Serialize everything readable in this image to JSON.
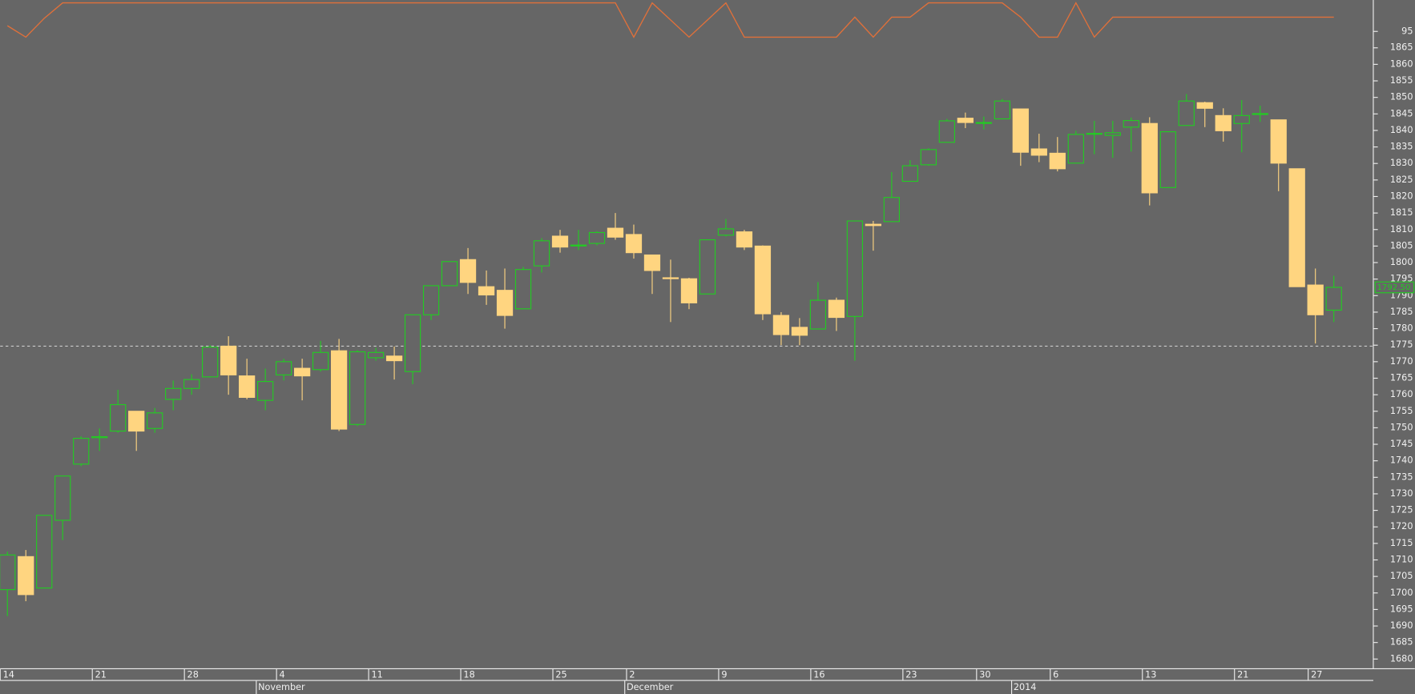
{
  "chart_data": [
    {
      "type": "candlestick",
      "categories": [
        "14",
        null,
        null,
        null,
        null,
        "21",
        null,
        null,
        null,
        null,
        "28",
        null,
        null,
        null,
        null,
        "4",
        null,
        null,
        null,
        null,
        "11",
        null,
        null,
        null,
        null,
        "18",
        null,
        null,
        null,
        null,
        "25",
        null,
        null,
        null,
        "2",
        null,
        null,
        null,
        null,
        "9",
        null,
        null,
        null,
        null,
        "16",
        null,
        null,
        null,
        null,
        "23",
        null,
        null,
        null,
        "30",
        null,
        null,
        null,
        "6",
        null,
        null,
        null,
        null,
        "13",
        null,
        null,
        null,
        null,
        "21",
        null,
        null,
        null,
        "27",
        null
      ],
      "months": [
        null,
        null,
        null,
        null,
        null,
        null,
        null,
        null,
        null,
        null,
        null,
        null,
        null,
        null,
        "November",
        null,
        null,
        null,
        null,
        null,
        null,
        null,
        null,
        null,
        null,
        null,
        null,
        null,
        null,
        null,
        null,
        null,
        null,
        null,
        "December",
        null,
        null,
        null,
        null,
        null,
        null,
        null,
        null,
        null,
        null,
        null,
        null,
        null,
        null,
        null,
        null,
        null,
        null,
        null,
        null,
        "2014",
        null,
        null,
        null,
        null,
        null,
        null,
        null,
        null,
        null,
        null,
        null,
        null,
        null,
        null,
        null,
        null,
        null
      ],
      "open": [
        1701,
        1711,
        1701.5,
        1722,
        1739,
        1747,
        1749,
        1755,
        1749.8,
        1758.6,
        1761.9,
        1765.4,
        1774.7,
        1765.7,
        1758.3,
        1766,
        1768,
        1767.6,
        1773.3,
        1751,
        1771.2,
        1771.7,
        1767,
        1784.2,
        1793,
        1800.9,
        1792.7,
        1791.6,
        1786,
        1799,
        1808,
        1805.2,
        1805.8,
        1810.4,
        1808.5,
        1802.3,
        1795.4,
        1795.1,
        1790.5,
        1808.3,
        1809.3,
        1805,
        1784,
        1780.4,
        1779.9,
        1788.6,
        1783.7,
        1811.6,
        1812.4,
        1824.6,
        1829.6,
        1836.4,
        1843.7,
        1842.3,
        1843.5,
        1846.5,
        1834.4,
        1833.1,
        1830.1,
        1839,
        1838.5,
        1841,
        1842.1,
        1822.7,
        1841.5,
        1848.4,
        1844.5,
        1842.1,
        1845,
        1843.2,
        1828.4,
        1793.2,
        1785.6
      ],
      "close": [
        1711.5,
        1699.5,
        1723.5,
        1735.4,
        1746.8,
        1747.3,
        1757,
        1749,
        1754.5,
        1761.9,
        1764.6,
        1774.4,
        1766,
        1759.2,
        1764,
        1770,
        1765.7,
        1772.8,
        1749.6,
        1773,
        1772.8,
        1770.3,
        1784.2,
        1793,
        1800.3,
        1794,
        1790.2,
        1784,
        1797.9,
        1806.6,
        1804.7,
        1805.3,
        1809.1,
        1807.7,
        1803,
        1797.6,
        1795.2,
        1787.8,
        1806.9,
        1810.2,
        1804.7,
        1784.5,
        1778.2,
        1778,
        1788.6,
        1783.4,
        1812.6,
        1811.2,
        1819.7,
        1829.3,
        1834.2,
        1842.9,
        1842.4,
        1842.4,
        1848.9,
        1833.4,
        1832.5,
        1828.4,
        1838.8,
        1839.1,
        1839.3,
        1843,
        1821.1,
        1839.6,
        1848.9,
        1846.7,
        1839.9,
        1844.5,
        1845.1,
        1830.1,
        1792.7,
        1784.2,
        1792.5
      ],
      "high": [
        1712.5,
        1713,
        1723.5,
        1735.4,
        1747.4,
        1749.8,
        1761.5,
        1755,
        1756,
        1764.3,
        1766.2,
        1775,
        1777.7,
        1770.9,
        1767.9,
        1770.9,
        1770.9,
        1776.3,
        1776.9,
        1773.5,
        1774.2,
        1774.6,
        1784.2,
        1793,
        1800.3,
        1804.4,
        1797.6,
        1798.2,
        1798.7,
        1807.4,
        1809.9,
        1809.9,
        1809.5,
        1815,
        1811.5,
        1802.3,
        1800.9,
        1795.4,
        1806.9,
        1813.2,
        1809.9,
        1805.2,
        1785,
        1783.2,
        1794.1,
        1789.4,
        1812.6,
        1812.6,
        1827.4,
        1831,
        1834.6,
        1843.5,
        1845.4,
        1844.2,
        1849.5,
        1846.5,
        1839,
        1838,
        1839.9,
        1842.9,
        1842.9,
        1843.9,
        1844,
        1839.6,
        1851,
        1848.7,
        1846.7,
        1849.2,
        1847.5,
        1843.2,
        1828.4,
        1798.2,
        1796
      ],
      "low": [
        1693,
        1697.5,
        1701.5,
        1716,
        1738.4,
        1743,
        1748.5,
        1743,
        1748.5,
        1755.3,
        1760,
        1765.2,
        1760,
        1758.6,
        1755.3,
        1764.3,
        1758.3,
        1767,
        1749,
        1750.5,
        1770.3,
        1764.6,
        1763.2,
        1782.6,
        1793,
        1790.5,
        1787.2,
        1780,
        1786,
        1797,
        1803,
        1803.8,
        1805.2,
        1806.9,
        1801.2,
        1790.5,
        1782,
        1785.9,
        1790.5,
        1807.9,
        1803.8,
        1782.6,
        1775,
        1775,
        1779.9,
        1779.3,
        1770.3,
        1803.6,
        1812.4,
        1824.6,
        1829.3,
        1836.4,
        1840.7,
        1840.3,
        1843.5,
        1829.3,
        1830.4,
        1827.6,
        1830.1,
        1832.8,
        1831.7,
        1833.6,
        1817.3,
        1822.7,
        1841.5,
        1841,
        1836.6,
        1833.4,
        1842.6,
        1821.6,
        1792.7,
        1775.5,
        1782
      ],
      "up_color": "#22cc22",
      "down_color": "#ffd580",
      "reference_line": 1774.7,
      "last_price": {
        "value": 1792.5,
        "label": "1792.50"
      },
      "ylim": [
        1677.6,
        1867.2
      ],
      "yticks": [
        1680,
        1685,
        1690,
        1695,
        1700,
        1705,
        1710,
        1715,
        1720,
        1725,
        1730,
        1735,
        1740,
        1745,
        1750,
        1755,
        1760,
        1765,
        1770,
        1775,
        1780,
        1785,
        1790,
        1795,
        1800,
        1805,
        1810,
        1815,
        1820,
        1825,
        1830,
        1835,
        1840,
        1845,
        1850,
        1855,
        1860,
        1865
      ]
    },
    {
      "type": "line",
      "color": "#e0703a",
      "values": [
        96,
        94,
        97.3,
        100,
        100,
        100,
        100,
        100,
        100,
        100,
        100,
        100,
        100,
        100,
        100,
        100,
        100,
        100,
        100,
        100,
        100,
        100,
        100,
        100,
        100,
        100,
        100,
        100,
        100,
        100,
        100,
        100,
        100,
        100,
        94,
        100,
        97,
        94,
        97,
        100,
        94,
        94,
        94,
        94,
        94,
        94,
        97.5,
        94,
        97.5,
        97.5,
        100,
        100,
        100,
        100,
        100,
        97.5,
        94,
        94,
        100,
        94,
        97.5,
        97.5,
        97.5,
        97.5,
        97.5,
        97.5,
        97.5,
        97.5,
        97.5,
        97.5,
        97.5,
        97.5,
        97.5
      ],
      "ylim": [
        93.4,
        100.5
      ],
      "yticks": [
        95
      ]
    }
  ]
}
